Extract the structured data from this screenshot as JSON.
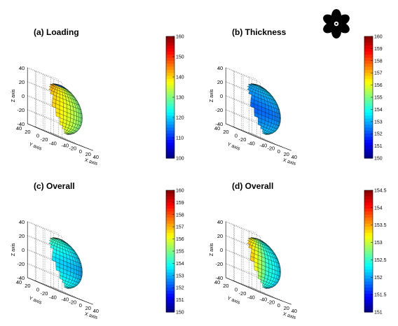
{
  "chart_data": [
    {
      "type": "surface",
      "title": "(a) Loading",
      "xlabel": "X axis",
      "ylabel": "Y axis",
      "zlabel": "Z axis",
      "x_ticks": [
        -40,
        -20,
        0,
        20,
        40
      ],
      "y_ticks": [
        -40,
        -20,
        0,
        20,
        40
      ],
      "z_ticks": [
        -40,
        -20,
        0,
        20,
        40
      ],
      "colorbar": {
        "ticks": [
          160,
          150,
          140,
          130,
          120,
          110,
          100
        ],
        "min": 100,
        "max": 160
      },
      "colormap": "jet",
      "grid": true
    },
    {
      "type": "surface",
      "title": "(b) Thickness",
      "xlabel": "X axis",
      "ylabel": "Y axis",
      "zlabel": "Z axis",
      "x_ticks": [
        -40,
        -20,
        0,
        20,
        40
      ],
      "y_ticks": [
        -40,
        -20,
        0,
        20,
        40
      ],
      "z_ticks": [
        -40,
        -20,
        0,
        20,
        40
      ],
      "colorbar": {
        "ticks": [
          160,
          159,
          158,
          157,
          156,
          155,
          154,
          153,
          152,
          151,
          150
        ],
        "min": 150,
        "max": 160
      },
      "colormap": "jet",
      "grid": true
    },
    {
      "type": "surface",
      "title": "(c) Overall",
      "xlabel": "X axis",
      "ylabel": "Y axis",
      "zlabel": "Z axis",
      "x_ticks": [
        -40,
        -20,
        0,
        20,
        40
      ],
      "y_ticks": [
        -40,
        -20,
        0,
        20,
        40
      ],
      "z_ticks": [
        -40,
        -20,
        0,
        20,
        40
      ],
      "colorbar": {
        "ticks": [
          160,
          159,
          158,
          157,
          156,
          155,
          154,
          153,
          152,
          151,
          150
        ],
        "min": 150,
        "max": 160
      },
      "colormap": "jet",
      "grid": true
    },
    {
      "type": "surface",
      "title": "(d) Overall",
      "xlabel": "X axis",
      "ylabel": "Y axis",
      "zlabel": "Z axis",
      "x_ticks": [
        -40,
        -20,
        0,
        20,
        40
      ],
      "y_ticks": [
        -40,
        -20,
        0,
        20,
        40
      ],
      "z_ticks": [
        -40,
        -20,
        0,
        20,
        40
      ],
      "colorbar": {
        "ticks": [
          "154.5",
          "154",
          "153.5",
          "153",
          "152.5",
          "152",
          "151.5",
          "151"
        ],
        "min": 151,
        "max": 154.5
      },
      "colormap": "jet",
      "grid": true
    }
  ],
  "colors": {
    "background": "#ffffff",
    "mesh": "#000000",
    "flower": "#000000"
  },
  "icons": [
    "flower-icon"
  ]
}
